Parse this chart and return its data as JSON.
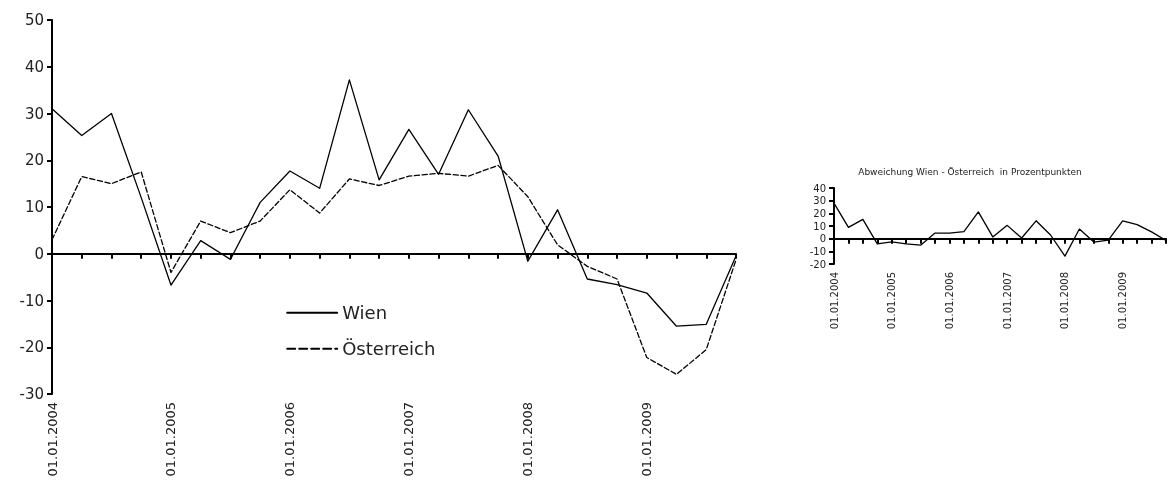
{
  "chart_data": [
    {
      "type": "line",
      "categories": [
        "01.01.2004",
        null,
        null,
        null,
        "01.01.2005",
        null,
        null,
        null,
        "01.01.2006",
        null,
        null,
        null,
        "01.01.2007",
        null,
        null,
        null,
        "01.01.2008",
        null,
        null,
        null,
        "01.01.2009",
        null,
        null,
        null
      ],
      "series": [
        {
          "name": "Wien",
          "color": "#000000",
          "line_style": "solid",
          "values": [
            31,
            25.3,
            30,
            12,
            -6.7,
            2.8,
            -1.2,
            11,
            17.7,
            14,
            37.2,
            15.8,
            26.6,
            17,
            30.8,
            20.9,
            -1.6,
            9.4,
            -5.4,
            -6.6,
            -8.4,
            -15.5,
            -15.1,
            -0.5
          ]
        },
        {
          "name": "Österreich",
          "color": "#000000",
          "line_style": "dashed",
          "values": [
            3,
            16.5,
            15,
            17.5,
            -4,
            7,
            4.5,
            7,
            13.7,
            8.7,
            16,
            14.6,
            16.6,
            17.2,
            16.6,
            18.9,
            12.2,
            1.9,
            -2.7,
            -5.4,
            -22.2,
            -25.8,
            -20.5,
            -1.3
          ]
        }
      ],
      "ylim": [
        -30,
        50
      ],
      "yticks": [
        -30,
        -20,
        -10,
        0,
        10,
        20,
        30,
        40,
        50
      ],
      "legend": "bottom",
      "marker": "none"
    },
    {
      "type": "line",
      "title": "Abweichung Wien - Österreich  in Prozentpunkten",
      "categories": [
        "01.01.2004",
        null,
        null,
        null,
        "01.01.2005",
        null,
        null,
        null,
        "01.01.2006",
        null,
        null,
        null,
        "01.01.2007",
        null,
        null,
        null,
        "01.01.2008",
        null,
        null,
        null,
        "01.01.2009",
        null,
        null,
        null
      ],
      "series": [
        {
          "color": "#000000",
          "line_style": "solid",
          "values": [
            28,
            8.9,
            15.2,
            -4.1,
            -2.5,
            -4.1,
            -5.1,
            4.4,
            4.4,
            5.6,
            21.1,
            1.4,
            10.5,
            0.5,
            14.1,
            2.9,
            -13.8,
            7.6,
            -2.7,
            -1.1,
            14.1,
            11.1,
            5.4,
            -1.4
          ]
        }
      ],
      "ylim": [
        -20,
        40
      ],
      "yticks": [
        -20,
        -10,
        0,
        10,
        20,
        30,
        40
      ],
      "legend": false,
      "marker": "none"
    }
  ]
}
